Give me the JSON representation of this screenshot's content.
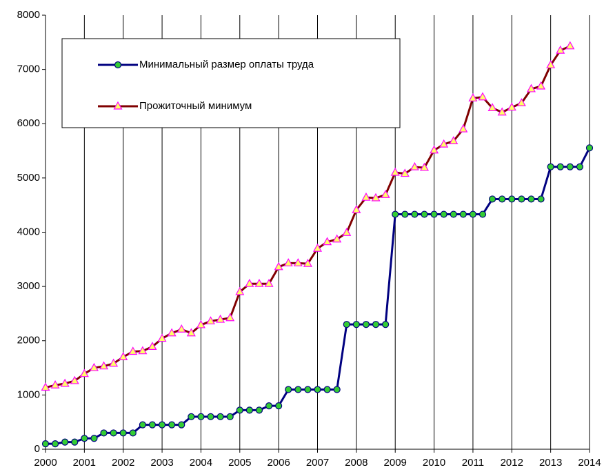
{
  "chart_data": {
    "type": "line",
    "x": [
      2000,
      2000.25,
      2000.5,
      2000.75,
      2001,
      2001.25,
      2001.5,
      2001.75,
      2002,
      2002.25,
      2002.5,
      2002.75,
      2003,
      2003.25,
      2003.5,
      2003.75,
      2004,
      2004.25,
      2004.5,
      2004.75,
      2005,
      2005.25,
      2005.5,
      2005.75,
      2006,
      2006.25,
      2006.5,
      2006.75,
      2007,
      2007.25,
      2007.5,
      2007.75,
      2008,
      2008.25,
      2008.5,
      2008.75,
      2009,
      2009.25,
      2009.5,
      2009.75,
      2010,
      2010.25,
      2010.5,
      2010.75,
      2011,
      2011.25,
      2011.5,
      2011.75,
      2012,
      2012.25,
      2012.5,
      2012.75,
      2013,
      2013.25,
      2013.5,
      2013.75,
      2014
    ],
    "series": [
      {
        "name": "Минимальный размер оплаты труда",
        "color": "#000080",
        "marker_color": "#33cc33",
        "marker": "circle",
        "values": [
          100,
          100,
          132,
          132,
          200,
          200,
          300,
          300,
          300,
          300,
          450,
          450,
          450,
          450,
          450,
          600,
          600,
          600,
          600,
          600,
          720,
          720,
          720,
          800,
          800,
          1100,
          1100,
          1100,
          1100,
          1100,
          1100,
          2300,
          2300,
          2300,
          2300,
          2300,
          4330,
          4330,
          4330,
          4330,
          4330,
          4330,
          4330,
          4330,
          4330,
          4330,
          4611,
          4611,
          4611,
          4611,
          4611,
          4611,
          5205,
          5205,
          5205,
          5205,
          5554
        ]
      },
      {
        "name": "Прожиточный минимум",
        "color": "#800000",
        "marker_color": "#ffff66",
        "marker_edge": "#ff00ff",
        "marker": "triangle",
        "values": [
          1138,
          1180,
          1210,
          1260,
          1390,
          1500,
          1530,
          1580,
          1700,
          1800,
          1810,
          1890,
          2040,
          2140,
          2210,
          2140,
          2290,
          2360,
          2390,
          2420,
          2900,
          3050,
          3050,
          3050,
          3360,
          3430,
          3430,
          3420,
          3700,
          3820,
          3870,
          3990,
          4410,
          4640,
          4630,
          4690,
          5100,
          5080,
          5200,
          5190,
          5510,
          5620,
          5680,
          5900,
          6470,
          6490,
          6290,
          6210,
          6300,
          6380,
          6640,
          6690,
          7080,
          7350,
          7430,
          null,
          null
        ]
      }
    ],
    "xlim": [
      2000,
      2014
    ],
    "xticks": [
      2000,
      2001,
      2002,
      2003,
      2004,
      2005,
      2006,
      2007,
      2008,
      2009,
      2010,
      2011,
      2012,
      2013,
      2014
    ],
    "ylim": [
      0,
      8000
    ],
    "yticks": [
      0,
      1000,
      2000,
      3000,
      4000,
      5000,
      6000,
      7000,
      8000
    ],
    "grid": "x",
    "legend": "upper left"
  }
}
